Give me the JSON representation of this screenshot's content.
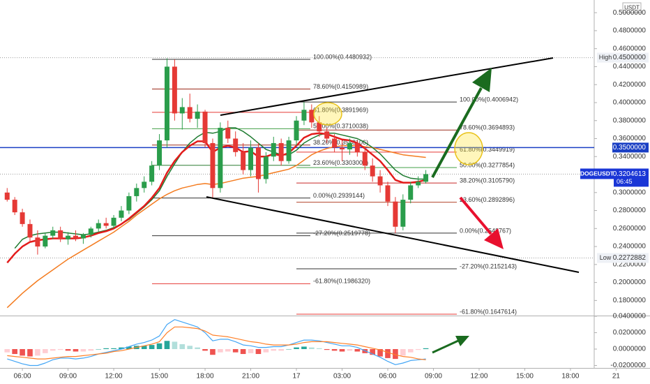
{
  "chart_data": {
    "type": "candlestick",
    "symbol": "DOGEUSDT",
    "currency": "USDT",
    "countdown": "06:45",
    "x": [
      5,
      5.5,
      6,
      6.5,
      7,
      7.5,
      8,
      8.5,
      9,
      9.5,
      10,
      10.5,
      11,
      11.5,
      12,
      12.5,
      13,
      13.5,
      14,
      14.5,
      15,
      15.5,
      16,
      16.5,
      17,
      17.5,
      18,
      18.5,
      19,
      19.5,
      20,
      20.5,
      21,
      21.5,
      22,
      22.5,
      23,
      23.5,
      24,
      24.5,
      25,
      25.5,
      26,
      26.5,
      27,
      27.5,
      28,
      28.5,
      29,
      29.5,
      30,
      30.5,
      31,
      31.5,
      32,
      32.5
    ],
    "open": [
      0.3,
      0.292,
      0.278,
      0.265,
      0.25,
      0.24,
      0.252,
      0.258,
      0.248,
      0.252,
      0.249,
      0.253,
      0.26,
      0.266,
      0.263,
      0.272,
      0.28,
      0.296,
      0.305,
      0.312,
      0.33,
      0.358,
      0.44,
      0.388,
      0.395,
      0.382,
      0.39,
      0.355,
      0.305,
      0.372,
      0.36,
      0.345,
      0.325,
      0.35,
      0.315,
      0.34,
      0.355,
      0.335,
      0.358,
      0.38,
      0.392,
      0.378,
      0.368,
      0.36,
      0.35,
      0.348,
      0.355,
      0.345,
      0.33,
      0.318,
      0.308,
      0.29,
      0.262,
      0.292,
      0.308,
      0.312
    ],
    "high": [
      0.305,
      0.295,
      0.282,
      0.27,
      0.258,
      0.255,
      0.262,
      0.262,
      0.256,
      0.258,
      0.255,
      0.262,
      0.27,
      0.272,
      0.275,
      0.285,
      0.3,
      0.31,
      0.318,
      0.335,
      0.365,
      0.4493,
      0.448,
      0.405,
      0.41,
      0.398,
      0.392,
      0.36,
      0.378,
      0.38,
      0.368,
      0.355,
      0.358,
      0.355,
      0.345,
      0.362,
      0.36,
      0.362,
      0.385,
      0.4006,
      0.398,
      0.385,
      0.372,
      0.365,
      0.358,
      0.36,
      0.358,
      0.35,
      0.338,
      0.325,
      0.312,
      0.295,
      0.298,
      0.312,
      0.318,
      0.325
    ],
    "low": [
      0.29,
      0.275,
      0.262,
      0.245,
      0.231,
      0.238,
      0.248,
      0.245,
      0.242,
      0.246,
      0.243,
      0.25,
      0.256,
      0.26,
      0.26,
      0.268,
      0.276,
      0.29,
      0.3,
      0.308,
      0.325,
      0.35,
      0.38,
      0.37,
      0.378,
      0.372,
      0.35,
      0.2939,
      0.3,
      0.355,
      0.34,
      0.32,
      0.318,
      0.3,
      0.31,
      0.335,
      0.33,
      0.332,
      0.352,
      0.375,
      0.372,
      0.362,
      0.355,
      0.345,
      0.335,
      0.342,
      0.34,
      0.325,
      0.312,
      0.3,
      0.285,
      0.2548,
      0.258,
      0.288,
      0.305,
      0.31
    ],
    "close": [
      0.292,
      0.278,
      0.265,
      0.25,
      0.24,
      0.252,
      0.258,
      0.248,
      0.252,
      0.249,
      0.253,
      0.26,
      0.266,
      0.263,
      0.272,
      0.28,
      0.296,
      0.305,
      0.312,
      0.33,
      0.358,
      0.44,
      0.388,
      0.395,
      0.382,
      0.39,
      0.355,
      0.305,
      0.372,
      0.36,
      0.345,
      0.325,
      0.35,
      0.315,
      0.34,
      0.355,
      0.335,
      0.358,
      0.38,
      0.392,
      0.378,
      0.368,
      0.36,
      0.35,
      0.348,
      0.355,
      0.345,
      0.33,
      0.318,
      0.308,
      0.29,
      0.262,
      0.292,
      0.308,
      0.312,
      0.3204613
    ],
    "up_color": "#2a9d4b",
    "down_color": "#e53935",
    "series": [
      {
        "color": "#f47c20",
        "width": 1.5,
        "values": [
          0.172,
          0.18,
          0.188,
          0.195,
          0.202,
          0.208,
          0.214,
          0.22,
          0.226,
          0.231,
          0.236,
          0.241,
          0.246,
          0.251,
          0.256,
          0.262,
          0.268,
          0.275,
          0.281,
          0.287,
          0.293,
          0.298,
          0.302,
          0.305,
          0.307,
          0.309,
          0.31,
          0.309,
          0.31,
          0.312,
          0.314,
          0.316,
          0.317,
          0.318,
          0.32,
          0.322,
          0.324,
          0.326,
          0.33,
          0.336,
          0.342,
          0.346,
          0.349,
          0.351,
          0.352,
          0.352,
          0.352,
          0.351,
          0.35,
          0.348,
          0.346,
          0.344,
          0.342,
          0.341,
          0.34,
          0.339
        ]
      },
      {
        "color": "#1e7b30",
        "width": 1.5,
        "values": [
          null,
          0.238,
          0.248,
          0.252,
          0.254,
          0.255,
          0.256,
          0.256,
          0.255,
          0.254,
          0.253,
          0.254,
          0.256,
          0.258,
          0.261,
          0.265,
          0.27,
          0.277,
          0.284,
          0.292,
          0.302,
          0.318,
          0.332,
          0.345,
          0.355,
          0.362,
          0.367,
          0.366,
          0.368,
          0.372,
          0.372,
          0.368,
          0.362,
          0.355,
          0.348,
          0.345,
          0.342,
          0.342,
          0.347,
          0.355,
          0.36,
          0.364,
          0.366,
          0.366,
          0.364,
          0.362,
          0.36,
          0.356,
          0.35,
          0.343,
          0.334,
          0.325,
          0.319,
          0.316,
          0.315,
          0.315
        ]
      },
      {
        "color": "#e31b1b",
        "width": 2.5,
        "values": [
          0.222,
          0.232,
          0.24,
          0.245,
          0.247,
          0.248,
          0.249,
          0.249,
          0.249,
          0.249,
          0.25,
          0.252,
          0.255,
          0.257,
          0.26,
          0.265,
          0.271,
          0.278,
          0.285,
          0.294,
          0.305,
          0.322,
          0.335,
          0.345,
          0.352,
          0.357,
          0.357,
          0.345,
          0.35,
          0.352,
          0.35,
          0.345,
          0.346,
          0.34,
          0.34,
          0.343,
          0.341,
          0.344,
          0.352,
          0.361,
          0.365,
          0.366,
          0.365,
          0.362,
          0.359,
          0.358,
          0.355,
          0.349,
          0.342,
          0.335,
          0.325,
          0.314,
          0.311,
          0.311,
          0.312,
          0.314
        ]
      }
    ],
    "xlim": [
      4.53,
      43.56
    ],
    "xticks": [
      {
        "value": 6,
        "label": "06:00"
      },
      {
        "value": 9,
        "label": "09:00"
      },
      {
        "value": 12,
        "label": "12:00"
      },
      {
        "value": 15,
        "label": "15:00"
      },
      {
        "value": 18,
        "label": "18:00"
      },
      {
        "value": 21,
        "label": "21:00"
      },
      {
        "value": 24,
        "label": "17"
      },
      {
        "value": 27,
        "label": "03:00"
      },
      {
        "value": 30,
        "label": "06:00"
      },
      {
        "value": 33,
        "label": "09:00"
      },
      {
        "value": 36,
        "label": "12:00"
      },
      {
        "value": 39,
        "label": "15:00"
      },
      {
        "value": 42,
        "label": "18:00"
      },
      {
        "value": 45,
        "label": "21"
      }
    ],
    "ylim": [
      0.1632,
      0.5141
    ],
    "yticks": [
      {
        "value": 0.5,
        "label": "0.5000000"
      },
      {
        "value": 0.48,
        "label": "0.4800000"
      },
      {
        "value": 0.46,
        "label": "0.4600000"
      },
      {
        "value": 0.44,
        "label": "0.4400000"
      },
      {
        "value": 0.42,
        "label": "0.4200000"
      },
      {
        "value": 0.4,
        "label": "0.4000000"
      },
      {
        "value": 0.38,
        "label": "0.3800000"
      },
      {
        "value": 0.36,
        "label": "0.3600000"
      },
      {
        "value": 0.34,
        "label": "0.3400000"
      },
      {
        "value": 0.3,
        "label": "0.3000000"
      },
      {
        "value": 0.28,
        "label": "0.2800000"
      },
      {
        "value": 0.26,
        "label": "0.2600000"
      },
      {
        "value": 0.24,
        "label": "0.2400000"
      },
      {
        "value": 0.22,
        "label": "0.2200000"
      },
      {
        "value": 0.2,
        "label": "0.2000000"
      },
      {
        "value": 0.18,
        "label": "0.1800000"
      }
    ],
    "last_price": 0.3204613,
    "last_price_color": "#1a36d6",
    "high_line": {
      "label": "High",
      "price": {
        "value": 0.45,
        "label": "0.4500000"
      }
    },
    "low_line": {
      "label": "Low",
      "price": 0.2272882
    },
    "horizontal_line": {
      "price": {
        "value": 0.35,
        "label": "0.3500000"
      },
      "color": "#1a3fc4"
    },
    "fib_retracements": [
      {
        "levels": [
          {
            "label": "100.00%(0.4480932)",
            "value": 0.4480932,
            "color": "#333333"
          },
          {
            "label": "78.60%(0.4150989)",
            "value": 0.4150989,
            "color": "#9c2b1b"
          },
          {
            "label": "61.80%(0.3891969)",
            "value": 0.3891969,
            "color": "#e53935"
          },
          {
            "label": "50.00%(0.3710038)",
            "value": 0.3710038,
            "color": "#43a047"
          },
          {
            "label": "38.20%(0.3528106)",
            "value": 0.3528106,
            "color": "#9c2b1b"
          },
          {
            "label": "23.60%(0.3303006)",
            "value": 0.3303006,
            "color": "#2e7d32"
          },
          {
            "label": "0.00%(0.2939144)",
            "value": 0.2939144,
            "color": "#333333"
          },
          {
            "label": "-27.20%(0.2519778)",
            "value": 0.2519778,
            "color": "#333333"
          },
          {
            "label": "-61.80%(0.1986320)",
            "value": 0.198632,
            "color": "#e53935"
          }
        ]
      },
      {
        "levels": [
          {
            "label": "100.00%(0.4006942)",
            "value": 0.4006942,
            "color": "#333333"
          },
          {
            "label": "78.60%(0.3694893)",
            "value": 0.3694893,
            "color": "#9c2b1b"
          },
          {
            "label": "61.80%(0.3449919)",
            "value": 0.3449919,
            "color": "#e53935"
          },
          {
            "label": "50.00%(0.3277854)",
            "value": 0.3277854,
            "color": "#43a047"
          },
          {
            "label": "38.20%(0.3105790)",
            "value": 0.310579,
            "color": "#c62828"
          },
          {
            "label": "23.60%(0.2892896)",
            "value": 0.2892896,
            "color": "#b2452b"
          },
          {
            "label": "0.00%(0.2548767)",
            "value": 0.2548767,
            "color": "#333333"
          },
          {
            "label": "-27.20%(0.2152143)",
            "value": 0.2152143,
            "color": "#333333"
          },
          {
            "label": "-61.80%(0.1647614)",
            "value": 0.1647614,
            "color": "#e53935"
          }
        ]
      }
    ],
    "macd": {
      "type": "bar",
      "values": [
        -0.004,
        -0.006,
        -0.008,
        -0.009,
        -0.008,
        -0.005,
        -0.002,
        -0.001,
        -0.002,
        -0.003,
        -0.003,
        -0.002,
        0.0,
        0.001,
        0.001,
        0.002,
        0.003,
        0.004,
        0.004,
        0.005,
        0.007,
        0.01,
        0.009,
        0.006,
        0.004,
        0.002,
        -0.002,
        -0.007,
        -0.004,
        -0.003,
        -0.004,
        -0.006,
        -0.005,
        -0.006,
        -0.004,
        -0.002,
        -0.002,
        0.0,
        0.002,
        0.003,
        0.002,
        0.001,
        -0.001,
        -0.002,
        -0.003,
        -0.002,
        -0.003,
        -0.005,
        -0.007,
        -0.009,
        -0.011,
        -0.012,
        -0.008,
        -0.004,
        -0.001,
        0.001
      ],
      "bar_colors": [
        "#26a69a",
        "#b2dfdb",
        "#ef5350",
        "#ffcdd2"
      ],
      "series": [
        {
          "color": "#42a5f5",
          "values": [
            -0.012,
            -0.015,
            -0.018,
            -0.02,
            -0.02,
            -0.017,
            -0.013,
            -0.011,
            -0.011,
            -0.012,
            -0.011,
            -0.009,
            -0.006,
            -0.004,
            -0.002,
            0.0,
            0.003,
            0.006,
            0.008,
            0.011,
            0.016,
            0.03,
            0.036,
            0.033,
            0.03,
            0.027,
            0.02,
            0.01,
            0.012,
            0.012,
            0.009,
            0.005,
            0.004,
            0.002,
            0.002,
            0.003,
            0.003,
            0.005,
            0.008,
            0.011,
            0.011,
            0.01,
            0.008,
            0.006,
            0.004,
            0.004,
            0.002,
            -0.002,
            -0.006,
            -0.01,
            -0.015,
            -0.019,
            -0.017,
            -0.014,
            -0.013,
            -0.012
          ]
        },
        {
          "color": "#ff7f27",
          "values": [
            -0.008,
            -0.009,
            -0.01,
            -0.011,
            -0.012,
            -0.012,
            -0.011,
            -0.01,
            -0.009,
            -0.009,
            -0.008,
            -0.007,
            -0.006,
            -0.005,
            -0.003,
            -0.002,
            0.0,
            0.002,
            0.004,
            0.006,
            0.009,
            0.02,
            0.027,
            0.027,
            0.026,
            0.025,
            0.022,
            0.017,
            0.016,
            0.015,
            0.013,
            0.011,
            0.009,
            0.008,
            0.006,
            0.005,
            0.005,
            0.005,
            0.006,
            0.008,
            0.009,
            0.009,
            0.009,
            0.008,
            0.007,
            0.006,
            0.005,
            0.003,
            0.001,
            -0.001,
            -0.004,
            -0.007,
            -0.009,
            -0.01,
            -0.012,
            -0.013
          ]
        }
      ],
      "ylim": [
        -0.023,
        0.04
      ],
      "yticks": [
        {
          "value": 0.04,
          "label": "0.0400000"
        },
        {
          "value": 0.02,
          "label": "0.0200000"
        },
        {
          "value": 0,
          "label": "0.0000000"
        },
        {
          "value": -0.02,
          "label": "-0.0200000"
        }
      ]
    }
  }
}
